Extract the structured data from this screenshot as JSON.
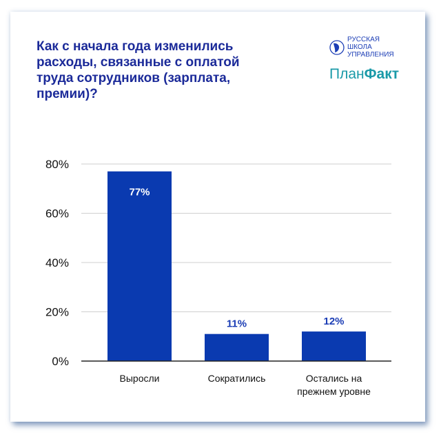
{
  "title": "Как с начала года изменились расходы, связанные с оплатой труда сотрудников (зарплата, премии)?",
  "logos": {
    "school": [
      "РУССКАЯ",
      "ШКОЛА",
      "УПРАВЛЕНИЯ"
    ],
    "planfakt_regular": "План",
    "planfakt_bold": "Факт"
  },
  "colors": {
    "bar": "#0a3ab0",
    "title": "#1b2a99",
    "label_outside": "#1b3db5",
    "label_inside": "#ffffff",
    "accent": "#1a9aa8"
  },
  "chart_data": {
    "type": "bar",
    "title": "Как с начала года изменились расходы, связанные с оплатой труда сотрудников (зарплата, премии)?",
    "categories": [
      [
        "Выросли"
      ],
      [
        "Сократились"
      ],
      [
        "Остались на",
        "прежнем уровне"
      ]
    ],
    "values": [
      77,
      11,
      12
    ],
    "data_labels": [
      "77%",
      "11%",
      "12%"
    ],
    "ylim": [
      0,
      80
    ],
    "yticks": [
      0,
      20,
      40,
      60,
      80
    ],
    "ytick_labels": [
      "0%",
      "20%",
      "40%",
      "60%",
      "80%"
    ],
    "grid": true,
    "xlabel": "",
    "ylabel": ""
  }
}
